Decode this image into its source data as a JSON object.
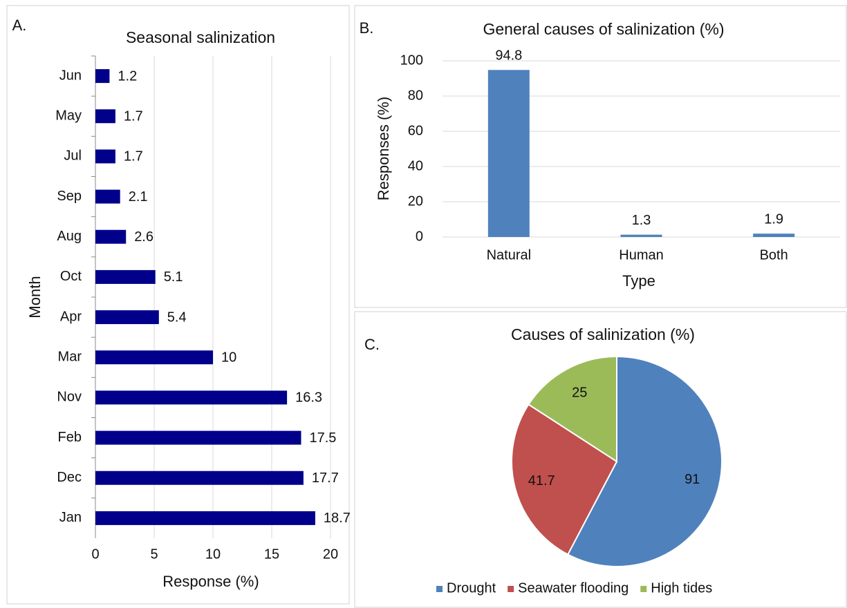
{
  "chart_data": [
    {
      "type": "hbar",
      "panel_label": "A.",
      "title": "Seasonal salinization",
      "x_label": "Response (%)",
      "y_label": "Month",
      "categories": [
        "Jun",
        "May",
        "Jul",
        "Sep",
        "Aug",
        "Oct",
        "Apr",
        "Mar",
        "Nov",
        "Feb",
        "Dec",
        "Jan"
      ],
      "values": [
        1.2,
        1.7,
        1.7,
        2.1,
        2.6,
        5.1,
        5.4,
        10,
        16.3,
        17.5,
        17.7,
        18.7
      ],
      "color": "#00008b",
      "xlim": [
        0,
        20
      ],
      "xticks": [
        0,
        5,
        10,
        15,
        20
      ],
      "grid": true
    },
    {
      "type": "bar",
      "panel_label": "B.",
      "title": "General causes of salinization (%)",
      "x_label": "Type",
      "y_label": "Responses (%)",
      "categories": [
        "Natural",
        "Human",
        "Both"
      ],
      "values": [
        94.8,
        1.3,
        1.9
      ],
      "color": "#4f81bd",
      "ylim": [
        0,
        100
      ],
      "yticks": [
        0,
        20,
        40,
        60,
        80,
        100
      ],
      "grid": true
    },
    {
      "type": "pie",
      "panel_label": "C.",
      "title": "Causes of salinization (%)",
      "categories": [
        "Drought",
        "Seawater flooding",
        "High tides"
      ],
      "values": [
        91,
        41.7,
        25
      ],
      "colors": [
        "#4f81bd",
        "#c0504d",
        "#9bbb59"
      ],
      "legend": "bottom"
    }
  ]
}
